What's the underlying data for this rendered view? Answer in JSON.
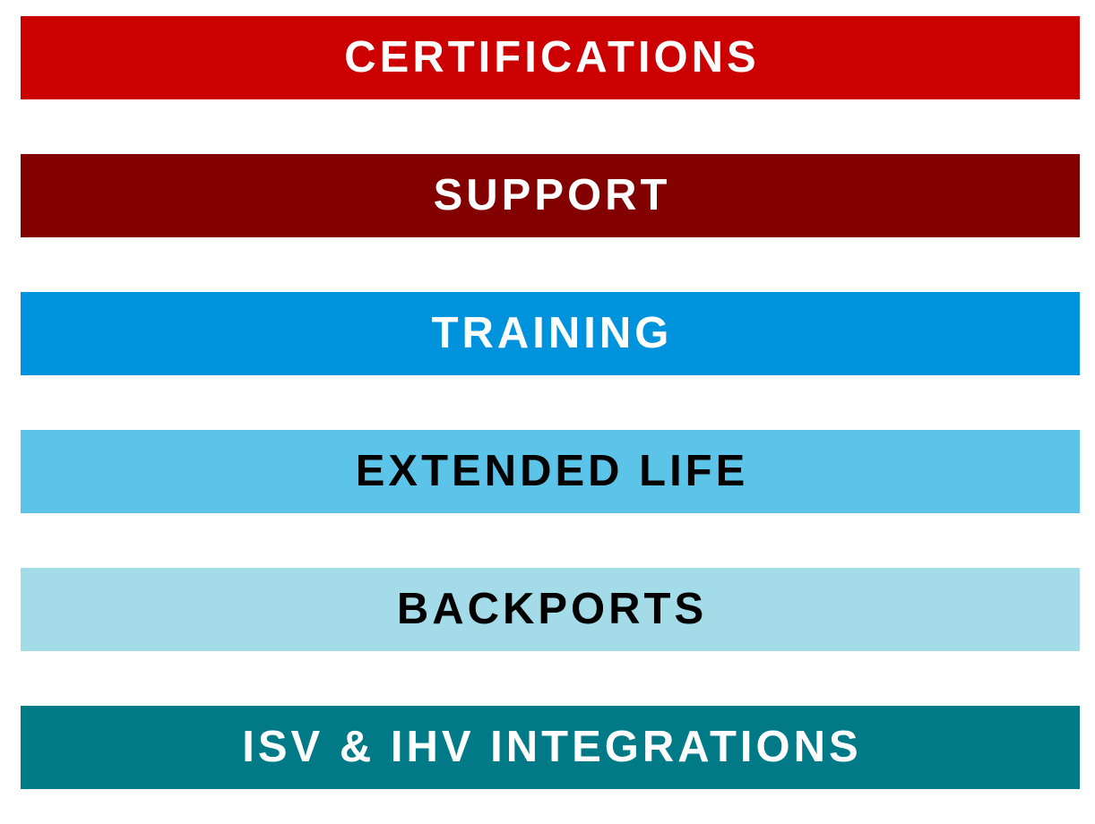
{
  "bars": [
    {
      "label": "CERTIFICATIONS",
      "background": "#cc0000",
      "color": "#ffffff"
    },
    {
      "label": "SUPPORT",
      "background": "#820000",
      "color": "#ffffff"
    },
    {
      "label": "TRAINING",
      "background": "#0093dd",
      "color": "#ffffff"
    },
    {
      "label": "EXTENDED LIFE",
      "background": "#5bc4e8",
      "color": "#000000"
    },
    {
      "label": "BACKPORTS",
      "background": "#a4dbe8",
      "color": "#000000"
    },
    {
      "label": "ISV & IHV INTEGRATIONS",
      "background": "#007a87",
      "color": "#ffffff"
    }
  ]
}
